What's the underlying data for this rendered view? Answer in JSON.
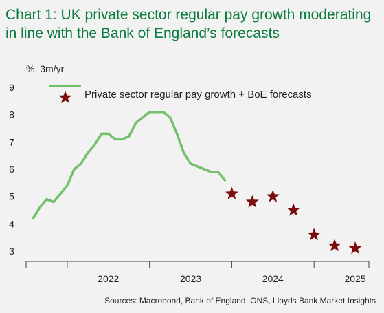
{
  "title": "Chart 1: UK private sector regular pay growth moderating in line with the Bank of England’s forecasts",
  "y_unit": "%, 3m/yr",
  "source": "Sources: Macrobond, Bank of England, ONS, Lloyds Bank Market Insights",
  "colors": {
    "line": "#74bf6c",
    "star": "#7a0d0d",
    "title": "#0b7a3e"
  },
  "chart_data": {
    "type": "line",
    "title": "",
    "xlabel": "",
    "ylabel": "%, 3m/yr",
    "ylim": [
      3,
      9
    ],
    "xlim": [
      "2021-07",
      "2025-09"
    ],
    "yticks": [
      3,
      4,
      5,
      6,
      7,
      8,
      9
    ],
    "xticks": [
      "2022",
      "2023",
      "2024",
      "2025"
    ],
    "grid": false,
    "legend_position": "top-left",
    "series": [
      {
        "name": "Private sector regular pay growth + BoE forecasts",
        "style": "line",
        "points": [
          {
            "x": "2021-08",
            "y": 4.2
          },
          {
            "x": "2021-09",
            "y": 4.6
          },
          {
            "x": "2021-10",
            "y": 4.9
          },
          {
            "x": "2021-11",
            "y": 4.8
          },
          {
            "x": "2021-12",
            "y": 5.1
          },
          {
            "x": "2022-01",
            "y": 5.4
          },
          {
            "x": "2022-02",
            "y": 6.0
          },
          {
            "x": "2022-03",
            "y": 6.2
          },
          {
            "x": "2022-04",
            "y": 6.6
          },
          {
            "x": "2022-05",
            "y": 6.9
          },
          {
            "x": "2022-06",
            "y": 7.3
          },
          {
            "x": "2022-07",
            "y": 7.3
          },
          {
            "x": "2022-08",
            "y": 7.1
          },
          {
            "x": "2022-09",
            "y": 7.1
          },
          {
            "x": "2022-10",
            "y": 7.2
          },
          {
            "x": "2022-11",
            "y": 7.7
          },
          {
            "x": "2022-12",
            "y": 7.9
          },
          {
            "x": "2023-01",
            "y": 8.1
          },
          {
            "x": "2023-02",
            "y": 8.1
          },
          {
            "x": "2023-03",
            "y": 8.1
          },
          {
            "x": "2023-04",
            "y": 7.9
          },
          {
            "x": "2023-05",
            "y": 7.3
          },
          {
            "x": "2023-06",
            "y": 6.6
          },
          {
            "x": "2023-07",
            "y": 6.2
          },
          {
            "x": "2023-08",
            "y": 6.1
          },
          {
            "x": "2023-09",
            "y": 6.0
          },
          {
            "x": "2023-10",
            "y": 5.9
          },
          {
            "x": "2023-11",
            "y": 5.9
          },
          {
            "x": "2023-12",
            "y": 5.6
          }
        ]
      },
      {
        "name": "",
        "style": "star",
        "points": [
          {
            "x": "2024-01",
            "y": 5.1
          },
          {
            "x": "2024-04",
            "y": 4.8
          },
          {
            "x": "2024-07",
            "y": 5.0
          },
          {
            "x": "2024-10",
            "y": 4.5
          },
          {
            "x": "2025-01",
            "y": 3.6
          },
          {
            "x": "2025-04",
            "y": 3.2
          },
          {
            "x": "2025-07",
            "y": 3.1
          }
        ]
      }
    ]
  }
}
